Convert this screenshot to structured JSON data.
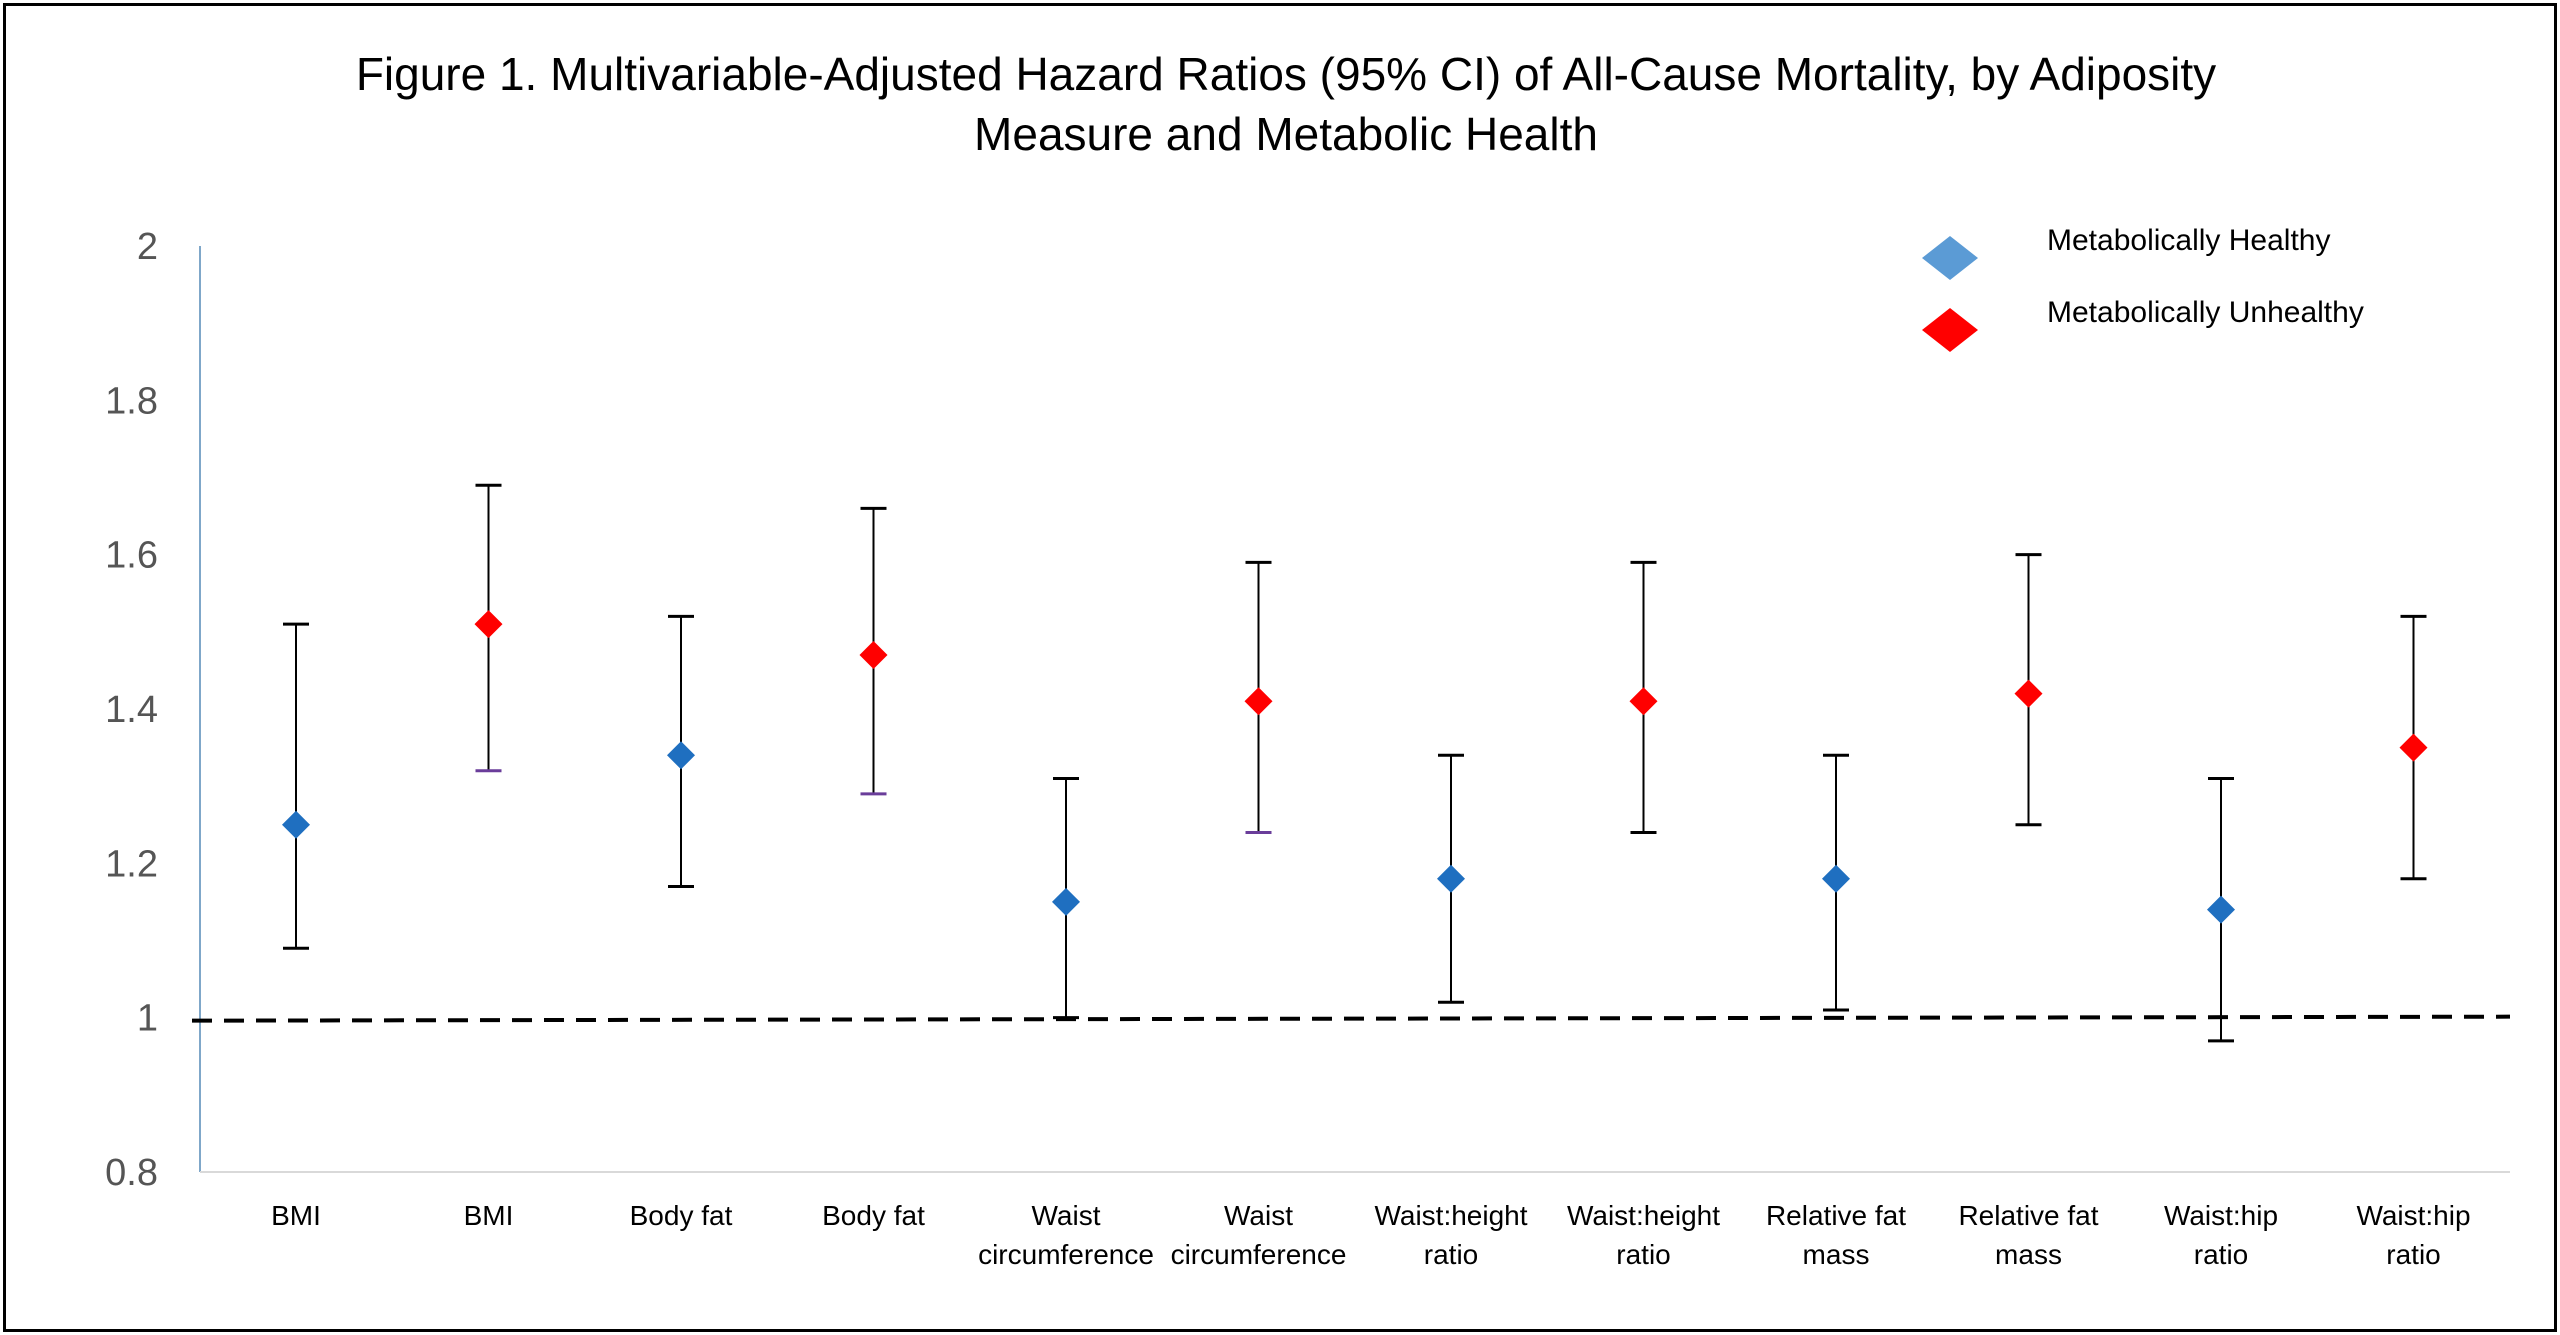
{
  "chart_data": {
    "type": "scatter",
    "title": "Figure  1. Multivariable-Adjusted Hazard Ratios (95% CI) of All-Cause Mortality, by Adiposity\nMeasure and Metabolic Health",
    "xlabel": "",
    "ylabel": "",
    "ylim": [
      0.8,
      2.0
    ],
    "y_ticks": [
      "0.8",
      "1",
      "1.2",
      "1.4",
      "1.6",
      "1.8",
      "2"
    ],
    "reference_line": 1.0,
    "grid": false,
    "legend_position": "top-right",
    "categories": [
      "BMI",
      "BMI",
      "Body fat",
      "Body fat",
      "Waist circumference",
      "Waist circumference",
      "Waist:height ratio",
      "Waist:height ratio",
      "Relative fat mass",
      "Relative fat mass",
      "Waist:hip ratio",
      "Waist:hip ratio"
    ],
    "category_lines": [
      [
        "BMI"
      ],
      [
        "BMI"
      ],
      [
        "Body fat"
      ],
      [
        "Body fat"
      ],
      [
        "Waist",
        "circumference"
      ],
      [
        "Waist",
        "circumference"
      ],
      [
        "Waist:height",
        "ratio"
      ],
      [
        "Waist:height",
        "ratio"
      ],
      [
        "Relative fat",
        "mass"
      ],
      [
        "Relative fat",
        "mass"
      ],
      [
        "Waist:hip",
        "ratio"
      ],
      [
        "Waist:hip",
        "ratio"
      ]
    ],
    "series": [
      {
        "name": "Metabolically Healthy",
        "color": "#1f6fc0",
        "legend_color": "#5b9bd5",
        "points": [
          {
            "category_index": 0,
            "hr": 1.25,
            "lower": 1.09,
            "upper": 1.51
          },
          {
            "category_index": 2,
            "hr": 1.34,
            "lower": 1.17,
            "upper": 1.52
          },
          {
            "category_index": 4,
            "hr": 1.15,
            "lower": 1.0,
            "upper": 1.31
          },
          {
            "category_index": 6,
            "hr": 1.18,
            "lower": 1.02,
            "upper": 1.34
          },
          {
            "category_index": 8,
            "hr": 1.18,
            "lower": 1.01,
            "upper": 1.34
          },
          {
            "category_index": 10,
            "hr": 1.14,
            "lower": 0.97,
            "upper": 1.31
          }
        ]
      },
      {
        "name": "Metabolically Unhealthy",
        "color": "#ff0000",
        "legend_color": "#ff0000",
        "points": [
          {
            "category_index": 1,
            "hr": 1.51,
            "lower": 1.32,
            "upper": 1.69
          },
          {
            "category_index": 3,
            "hr": 1.47,
            "lower": 1.29,
            "upper": 1.66
          },
          {
            "category_index": 5,
            "hr": 1.41,
            "lower": 1.24,
            "upper": 1.59
          },
          {
            "category_index": 7,
            "hr": 1.41,
            "lower": 1.24,
            "upper": 1.59
          },
          {
            "category_index": 9,
            "hr": 1.42,
            "lower": 1.25,
            "upper": 1.6
          },
          {
            "category_index": 11,
            "hr": 1.35,
            "lower": 1.18,
            "upper": 1.52
          }
        ]
      }
    ],
    "colors": {
      "axis": "#7fa7c9",
      "error_bar": "#000000",
      "reference_line": "#000000",
      "tick_text": "#555555"
    }
  }
}
